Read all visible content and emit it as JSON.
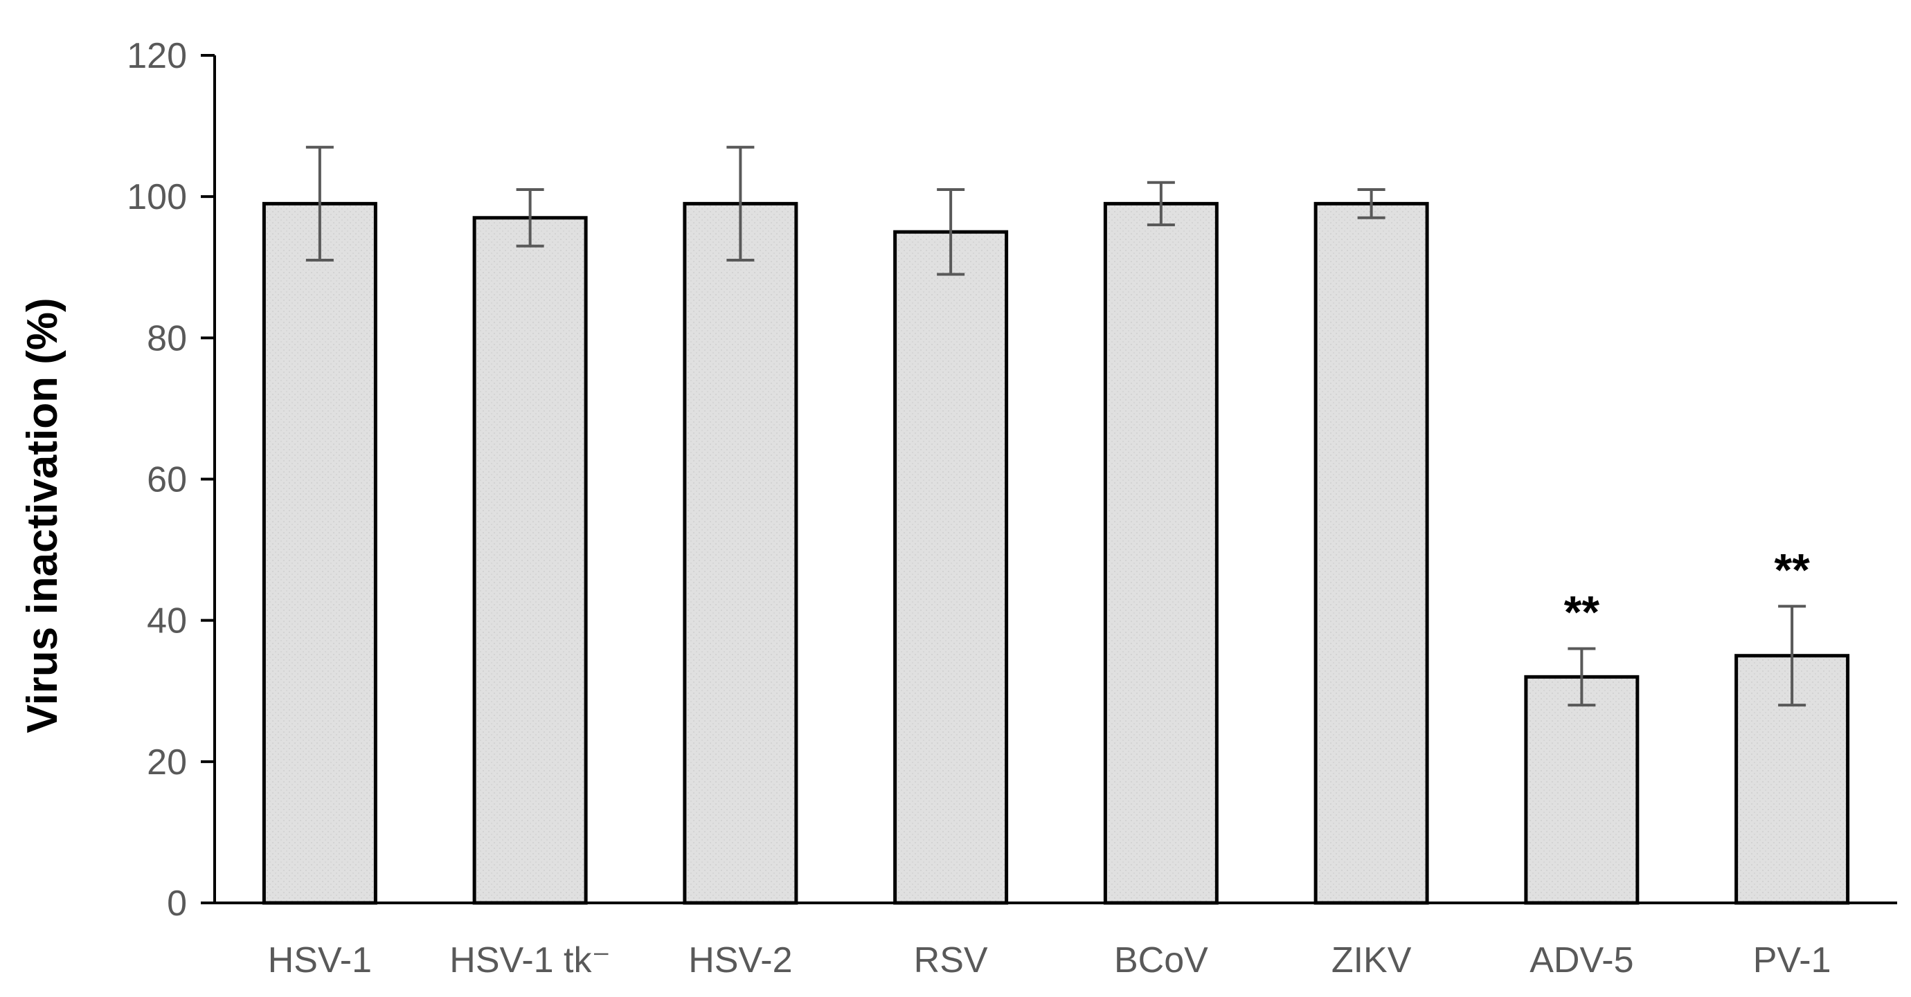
{
  "chart_data": {
    "type": "bar",
    "categories": [
      "HSV-1",
      "HSV-1 tk⁻",
      "HSV-2",
      "RSV",
      "BCoV",
      "ZIKV",
      "ADV-5",
      "PV-1"
    ],
    "values": [
      99,
      97,
      99,
      95,
      99,
      99,
      32,
      35
    ],
    "errors": [
      8,
      4,
      8,
      6,
      3,
      2,
      4,
      7
    ],
    "annotations": [
      "",
      "",
      "",
      "",
      "",
      "",
      "**",
      "**"
    ],
    "ylabel": "Virus inactivation (%)",
    "xlabel": "",
    "ylim": [
      0,
      120
    ],
    "yticks": [
      0,
      20,
      40,
      60,
      80,
      100,
      120
    ],
    "grid": false,
    "legend": "none",
    "colors": {
      "bar_fill": "#e0e0e0",
      "bar_stroke": "#000000",
      "error_bar": "#595959",
      "axis": "#000000"
    }
  }
}
